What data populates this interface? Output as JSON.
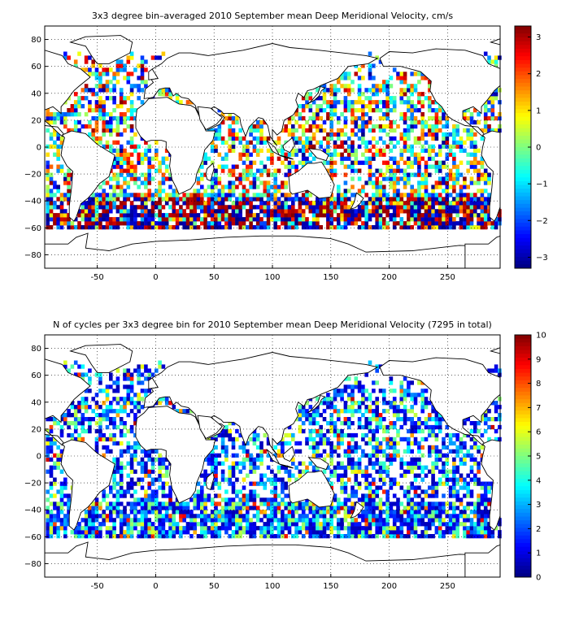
{
  "chart_data": [
    {
      "type": "heatmap",
      "title": "3x3 degree bin–averaged 2010 September mean Deep Meridional Velocity, cm/s",
      "xlabel": "",
      "ylabel": "",
      "xlim": [
        -95,
        295
      ],
      "ylim": [
        -90,
        90
      ],
      "x_ticks": [
        -50,
        0,
        50,
        100,
        150,
        200,
        250
      ],
      "x_tick_labels": [
        "-50",
        "0",
        "50",
        "100",
        "150",
        "200",
        "250"
      ],
      "y_ticks": [
        80,
        60,
        40,
        20,
        0,
        -20,
        -40,
        -60,
        -80
      ],
      "y_tick_labels": [
        "80",
        "60",
        "40",
        "20",
        "0",
        "−20",
        "−40",
        "−60",
        "−80"
      ],
      "grid": true,
      "bin_size_deg": 3,
      "colorbar": {
        "colormap": "jet",
        "range": [
          -3.3,
          3.3
        ],
        "ticks": [
          3,
          2,
          1,
          0,
          -1,
          -2,
          -3
        ],
        "tick_labels": [
          "3",
          "2",
          "1",
          "0",
          "−1",
          "−2",
          "−3"
        ]
      },
      "mode": "velocity"
    },
    {
      "type": "heatmap",
      "title": "N of cycles per 3x3 degree bin for 2010 September mean Deep Meridional Velocity (7295 in total)",
      "xlabel": "",
      "ylabel": "",
      "xlim": [
        -95,
        295
      ],
      "ylim": [
        -90,
        90
      ],
      "x_ticks": [
        -50,
        0,
        50,
        100,
        150,
        200,
        250
      ],
      "x_tick_labels": [
        "-50",
        "0",
        "50",
        "100",
        "150",
        "200",
        "250"
      ],
      "y_ticks": [
        80,
        60,
        40,
        20,
        0,
        -20,
        -40,
        -60,
        -80
      ],
      "y_tick_labels": [
        "80",
        "60",
        "40",
        "20",
        "0",
        "−20",
        "−40",
        "−60",
        "−80"
      ],
      "grid": true,
      "bin_size_deg": 3,
      "colorbar": {
        "colormap": "jet",
        "range": [
          0,
          10
        ],
        "ticks": [
          10,
          9,
          8,
          7,
          6,
          5,
          4,
          3,
          2,
          1,
          0
        ],
        "tick_labels": [
          "10",
          "9",
          "8",
          "7",
          "6",
          "5",
          "4",
          "3",
          "2",
          "1",
          "0"
        ]
      },
      "mode": "count"
    }
  ]
}
